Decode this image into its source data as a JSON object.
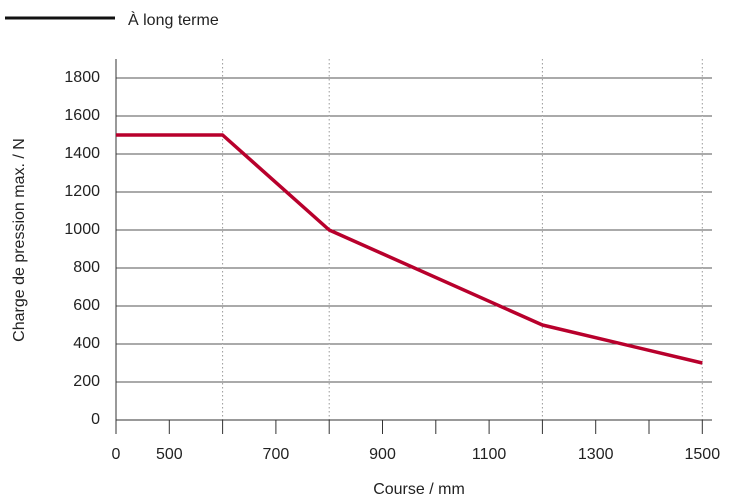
{
  "chart_data": {
    "type": "line",
    "x": [
      0,
      600,
      800,
      1200,
      1500
    ],
    "series": [
      {
        "name": "À long terme",
        "color": "#b8002c",
        "values": [
          1500,
          1500,
          1000,
          500,
          300
        ]
      }
    ],
    "xlabel": "Course / mm",
    "ylabel": "Charge de pression max. / N",
    "xlim": [
      0,
      1500
    ],
    "xticks": [
      0,
      500,
      700,
      900,
      1100,
      1300,
      1500
    ],
    "xminorticks": [
      600,
      800,
      1000,
      1200,
      1400
    ],
    "xgrid": [
      600,
      800,
      1200,
      1500
    ],
    "ylim": [
      0,
      1900
    ],
    "yticks": [
      0,
      200,
      400,
      600,
      800,
      1000,
      1200,
      1400,
      1600,
      1800
    ],
    "grid": true,
    "legend": "top-left"
  }
}
